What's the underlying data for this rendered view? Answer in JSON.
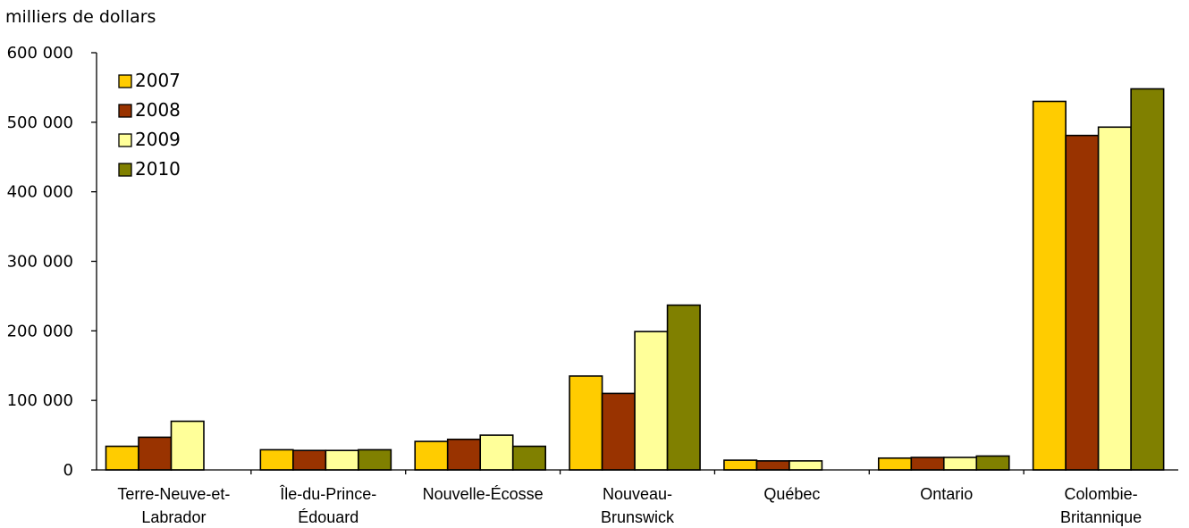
{
  "chart_data": {
    "type": "bar",
    "title": "",
    "ylabel": "milliers de dollars",
    "xlabel": "",
    "ylim": [
      0,
      600000
    ],
    "yticks": [
      0,
      100000,
      200000,
      300000,
      400000,
      500000,
      600000
    ],
    "ytick_labels": [
      "0",
      "100 000",
      "200 000",
      "300 000",
      "400 000",
      "500 000",
      "600 000"
    ],
    "categories": [
      [
        "Terre-Neuve-et-",
        "Labrador"
      ],
      [
        "Île-du-Prince-",
        "Édouard"
      ],
      [
        "Nouvelle-Écosse"
      ],
      [
        "Nouveau-",
        "Brunswick"
      ],
      [
        "Québec"
      ],
      [
        "Ontario"
      ],
      [
        "Colombie-",
        "Britannique"
      ]
    ],
    "series": [
      {
        "name": "2007",
        "color": "#FFCC00",
        "values": [
          34000,
          29000,
          41000,
          135000,
          14000,
          17000,
          530000
        ]
      },
      {
        "name": "2008",
        "color": "#993300",
        "values": [
          47000,
          28000,
          44000,
          110000,
          13000,
          18000,
          481000
        ]
      },
      {
        "name": "2009",
        "color": "#FFFF99",
        "values": [
          70000,
          28000,
          50000,
          199000,
          13000,
          18000,
          493000
        ]
      },
      {
        "name": "2010",
        "color": "#808000",
        "values": [
          0,
          29000,
          34000,
          237000,
          0,
          20000,
          548000
        ]
      }
    ],
    "legend": "top-left",
    "grid": false
  }
}
